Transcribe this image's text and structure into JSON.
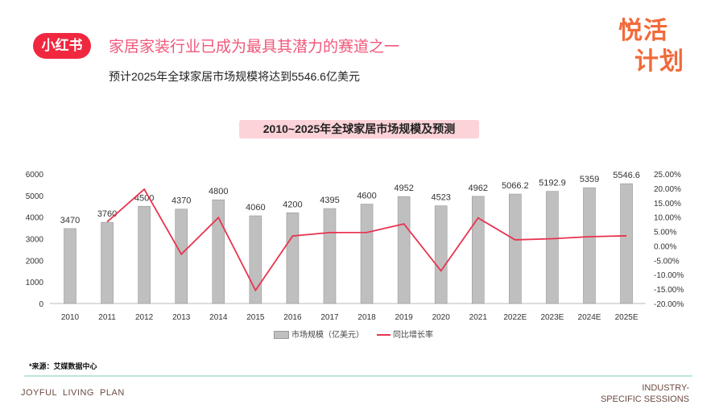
{
  "header": {
    "logo": "小红书",
    "headline": "家居家装行业已成为最具其潜力的赛道之一",
    "subtitle": "预计2025年全球家居市场规模将达到5546.6亿美元",
    "brand_line1": "悦活",
    "brand_line2": "计划"
  },
  "chart_data": {
    "type": "bar+line",
    "title": "2010~2025年全球家居市场规模及预测",
    "categories": [
      "2010",
      "2011",
      "2012",
      "2013",
      "2014",
      "2015",
      "2016",
      "2017",
      "2018",
      "2019",
      "2020",
      "2021",
      "2022E",
      "2023E",
      "2024E",
      "2025E"
    ],
    "series": [
      {
        "name": "市场规模（亿美元）",
        "type": "bar",
        "axis": "left",
        "values": [
          3470,
          3760,
          4500,
          4370,
          4800,
          4060,
          4200,
          4395,
          4600,
          4952,
          4523,
          4962,
          5066.2,
          5192.9,
          5359,
          5546.6
        ],
        "labels": [
          "3470",
          "3760",
          "4500",
          "4370",
          "4800",
          "4060",
          "4200",
          "4395",
          "4600",
          "4952",
          "4523",
          "4962",
          "5066.2",
          "5192.9",
          "5359",
          "5546.6"
        ],
        "color": "#bfbfbf"
      },
      {
        "name": "同比增长率",
        "type": "line",
        "axis": "right",
        "values": [
          null,
          8.36,
          19.68,
          -2.89,
          9.84,
          -15.42,
          3.45,
          4.64,
          4.66,
          7.65,
          -8.66,
          9.71,
          2.1,
          2.5,
          3.2,
          3.5
        ],
        "color": "#e8334f"
      }
    ],
    "yleft": {
      "range": [
        0,
        6000
      ],
      "ticks": [
        "0",
        "1000",
        "2000",
        "3000",
        "4000",
        "5000",
        "6000"
      ]
    },
    "yright": {
      "range": [
        -20,
        25
      ],
      "ticks": [
        "-20.00%",
        "-15.00%",
        "-10.00%",
        "-5.00%",
        "0.00%",
        "5.00%",
        "10.00%",
        "15.00%",
        "20.00%",
        "25.00%"
      ]
    },
    "legend_position": "bottom"
  },
  "footer": {
    "source": "*来源：艾媒数据中心",
    "left": "JOYFUL  LIVING  PLAN",
    "right1": "INDUSTRY-",
    "right2": "SPECIFIC SESSIONS"
  }
}
